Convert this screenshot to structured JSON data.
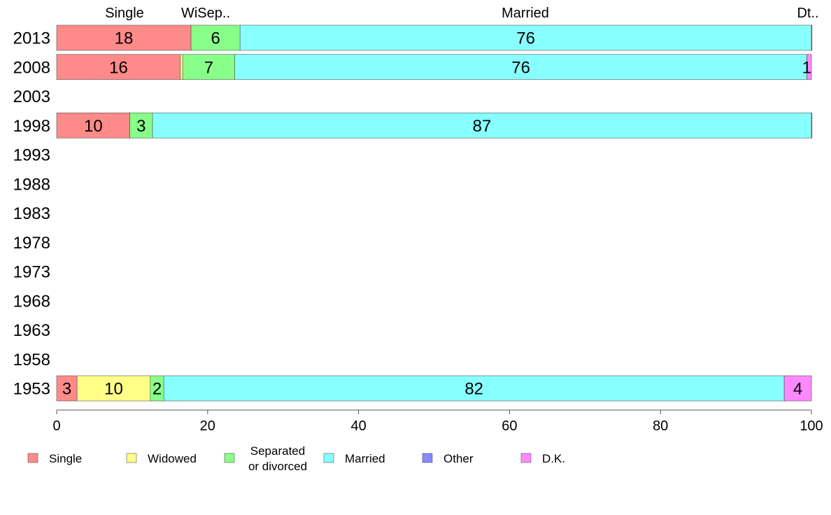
{
  "chart_data": {
    "type": "bar",
    "orientation": "horizontal",
    "stacked": true,
    "categories": [
      "2013",
      "2008",
      "2003",
      "1998",
      "1993",
      "1988",
      "1983",
      "1978",
      "1973",
      "1968",
      "1963",
      "1958",
      "1953"
    ],
    "xlim": [
      0,
      100
    ],
    "x_ticks": [
      "0",
      "20",
      "40",
      "60",
      "80",
      "100"
    ],
    "grid": false,
    "legend_position": "bottom",
    "top_labels": [
      "Single",
      "WiSep..",
      "Married",
      "Dt.."
    ],
    "series": [
      {
        "name": "Single",
        "color": "#ff8a8a",
        "values": [
          17.8,
          16.4,
          null,
          9.7,
          null,
          null,
          null,
          null,
          null,
          null,
          null,
          null,
          2.7
        ],
        "labels": [
          "18",
          "16",
          "",
          "10",
          "",
          "",
          "",
          "",
          "",
          "",
          "",
          "",
          "3"
        ]
      },
      {
        "name": "Widowed",
        "color": "#ffff88",
        "values": [
          0,
          0.3,
          null,
          0,
          null,
          null,
          null,
          null,
          null,
          null,
          null,
          null,
          9.7
        ],
        "labels": [
          "",
          "",
          "",
          "",
          "",
          "",
          "",
          "",
          "",
          "",
          "",
          "",
          "10"
        ]
      },
      {
        "name": "Separated or divorced",
        "color": "#88ff88",
        "values": [
          6.5,
          6.9,
          null,
          3.0,
          null,
          null,
          null,
          null,
          null,
          null,
          null,
          null,
          1.8
        ],
        "labels": [
          "6",
          "7",
          "",
          "3",
          "",
          "",
          "",
          "",
          "",
          "",
          "",
          "",
          "2"
        ]
      },
      {
        "name": "Married",
        "color": "#88ffff",
        "values": [
          75.7,
          75.8,
          null,
          87.3,
          null,
          null,
          null,
          null,
          null,
          null,
          null,
          null,
          82.2
        ],
        "labels": [
          "76",
          "76",
          "",
          "87",
          "",
          "",
          "",
          "",
          "",
          "",
          "",
          "",
          "82"
        ]
      },
      {
        "name": "Other",
        "color": "#8888ff",
        "values": [
          0,
          0,
          null,
          0,
          null,
          null,
          null,
          null,
          null,
          null,
          null,
          null,
          0
        ],
        "labels": [
          "",
          "",
          "",
          "",
          "",
          "",
          "",
          "",
          "",
          "",
          "",
          "",
          ""
        ]
      },
      {
        "name": "D.K.",
        "color": "#ff88ff",
        "values": [
          0,
          0.6,
          null,
          0,
          null,
          null,
          null,
          null,
          null,
          null,
          null,
          null,
          3.6
        ],
        "labels": [
          "",
          "1",
          "",
          "",
          "",
          "",
          "",
          "",
          "",
          "",
          "",
          "",
          "4"
        ]
      }
    ]
  },
  "legend": [
    {
      "label": "Single",
      "color": "#ff8a8a"
    },
    {
      "label": "Widowed",
      "color": "#ffff88"
    },
    {
      "label": "Separated\nor divorced",
      "color": "#88ff88"
    },
    {
      "label": "Married",
      "color": "#88ffff"
    },
    {
      "label": "Other",
      "color": "#8888ff"
    },
    {
      "label": "D.K.",
      "color": "#ff88ff"
    }
  ]
}
